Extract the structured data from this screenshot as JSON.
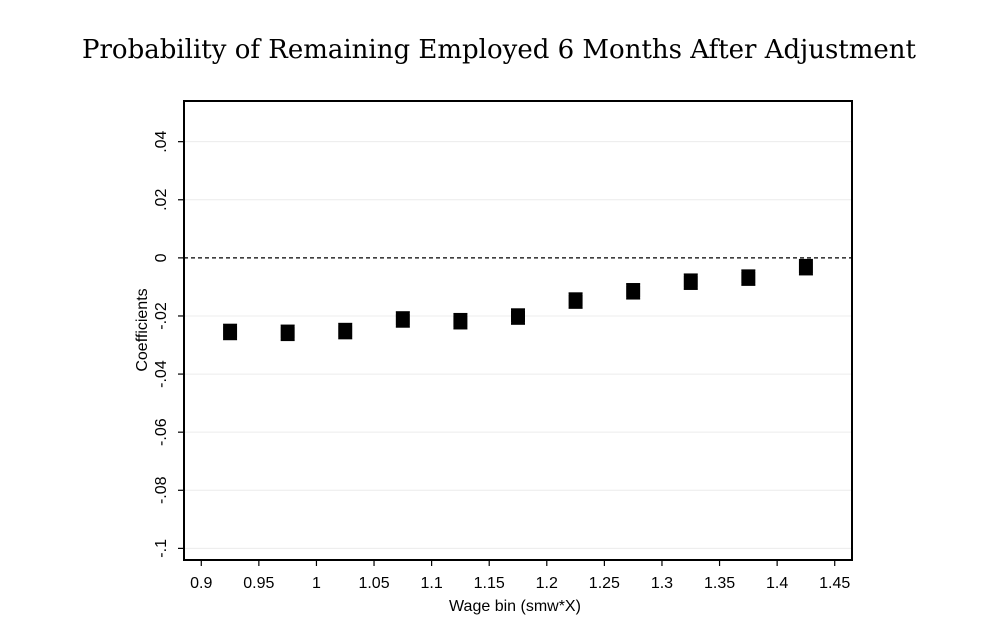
{
  "chart_data": {
    "type": "scatter",
    "title": "Probability of Remaining Employed 6 Months After Adjustment",
    "xlabel": "Wage bin (smw*X)",
    "ylabel": "Coefficients",
    "xlim": [
      0.885,
      1.465
    ],
    "ylim": [
      -0.104,
      0.054
    ],
    "x_ticks": [
      0.9,
      0.95,
      1,
      1.05,
      1.1,
      1.15,
      1.2,
      1.25,
      1.3,
      1.35,
      1.4,
      1.45
    ],
    "x_tick_labels": [
      "0.9",
      "0.95",
      "1",
      "1.05",
      "1.1",
      "1.15",
      "1.2",
      "1.25",
      "1.3",
      "1.35",
      "1.4",
      "1.45"
    ],
    "y_ticks": [
      -0.1,
      -0.08,
      -0.06,
      -0.04,
      -0.02,
      0,
      0.02,
      0.04
    ],
    "y_tick_labels": [
      "-.1",
      "-.08",
      "-.06",
      "-.04",
      "-.02",
      "0",
      ".02",
      ".04"
    ],
    "reference_line_y": 0,
    "grid": true,
    "marker_color": "#000000",
    "points": [
      {
        "x": 0.925,
        "y": -0.0255,
        "ci": [
          -0.028,
          -0.023
        ]
      },
      {
        "x": 0.975,
        "y": -0.0258,
        "ci": [
          -0.0283,
          -0.0233
        ]
      },
      {
        "x": 1.025,
        "y": -0.0252,
        "ci": [
          -0.0277,
          -0.0227
        ]
      },
      {
        "x": 1.075,
        "y": -0.0212,
        "ci": [
          -0.0237,
          -0.0187
        ]
      },
      {
        "x": 1.125,
        "y": -0.0218,
        "ci": [
          -0.0243,
          -0.0193
        ]
      },
      {
        "x": 1.175,
        "y": -0.0202,
        "ci": [
          -0.0227,
          -0.0177
        ]
      },
      {
        "x": 1.225,
        "y": -0.0147,
        "ci": [
          -0.0172,
          -0.0122
        ]
      },
      {
        "x": 1.275,
        "y": -0.0115,
        "ci": [
          -0.014,
          -0.009
        ]
      },
      {
        "x": 1.325,
        "y": -0.0082,
        "ci": [
          -0.0107,
          -0.0057
        ]
      },
      {
        "x": 1.375,
        "y": -0.0068,
        "ci": [
          -0.0093,
          -0.0043
        ]
      },
      {
        "x": 1.425,
        "y": -0.0032,
        "ci": [
          -0.0057,
          -0.0007
        ]
      }
    ]
  }
}
